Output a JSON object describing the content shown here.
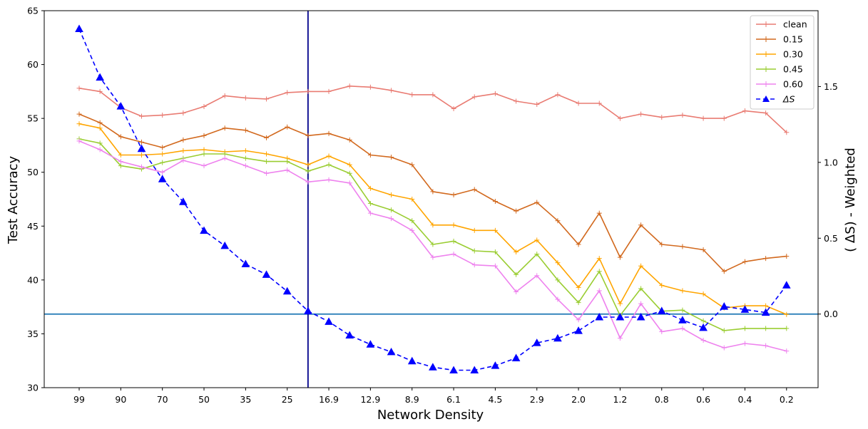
{
  "chart_data": {
    "type": "line",
    "xlabel": "Network Density",
    "ylabel": "Test Accuracy",
    "y2label": "( ΔS) - Weighted",
    "ylim": [
      30,
      65
    ],
    "y2lim": [
      -0.4852,
      2.0
    ],
    "y_ticks": [
      30,
      35,
      40,
      45,
      50,
      55,
      60,
      65
    ],
    "y2_ticks": [
      0.0,
      0.5,
      1.0,
      1.5
    ],
    "y2_tick_labels": [
      "0.0",
      "0.5",
      "1.0",
      "1.5"
    ],
    "x_points": 35,
    "x_ticks": [
      {
        "index": 0,
        "label": "99"
      },
      {
        "index": 2,
        "label": "90"
      },
      {
        "index": 4,
        "label": "70"
      },
      {
        "index": 6,
        "label": "50"
      },
      {
        "index": 8,
        "label": "35"
      },
      {
        "index": 10,
        "label": "25"
      },
      {
        "index": 12,
        "label": "16.9"
      },
      {
        "index": 14,
        "label": "12.9"
      },
      {
        "index": 16,
        "label": "8.9"
      },
      {
        "index": 18,
        "label": "6.1"
      },
      {
        "index": 20,
        "label": "4.5"
      },
      {
        "index": 22,
        "label": "2.9"
      },
      {
        "index": 24,
        "label": "2.0"
      },
      {
        "index": 26,
        "label": "1.2"
      },
      {
        "index": 28,
        "label": "0.8"
      },
      {
        "index": 30,
        "label": "0.6"
      },
      {
        "index": 32,
        "label": "0.4"
      },
      {
        "index": 34,
        "label": "0.2"
      }
    ],
    "vline_index": 11,
    "hline_y2": 0.0,
    "series": [
      {
        "name": "clean",
        "color": "#e97b72",
        "axis": "left",
        "values": [
          57.8,
          57.5,
          56.0,
          55.2,
          55.3,
          55.5,
          56.1,
          57.1,
          56.9,
          56.8,
          57.4,
          57.5,
          57.5,
          58.0,
          57.9,
          57.6,
          57.2,
          57.2,
          55.9,
          57.0,
          57.3,
          56.6,
          56.3,
          57.2,
          56.4,
          56.4,
          55.0,
          55.4,
          55.1,
          55.3,
          55.0,
          55.0,
          55.7,
          55.5,
          53.7
        ]
      },
      {
        "name": "0.15",
        "color": "#d2691e",
        "axis": "left",
        "values": [
          55.4,
          54.6,
          53.3,
          52.8,
          52.3,
          53.0,
          53.4,
          54.1,
          53.9,
          53.2,
          54.2,
          53.4,
          53.6,
          53.0,
          51.6,
          51.4,
          50.7,
          48.2,
          47.9,
          48.4,
          47.3,
          46.4,
          47.2,
          45.5,
          43.3,
          46.2,
          42.1,
          45.1,
          43.3,
          43.1,
          42.8,
          40.8,
          41.7,
          42.0,
          42.2
        ]
      },
      {
        "name": "0.30",
        "color": "#ffa500",
        "axis": "left",
        "values": [
          54.5,
          54.1,
          51.6,
          51.6,
          51.7,
          52.0,
          52.1,
          51.9,
          52.0,
          51.7,
          51.3,
          50.7,
          51.5,
          50.7,
          48.5,
          47.9,
          47.5,
          45.1,
          45.1,
          44.6,
          44.6,
          42.6,
          43.7,
          41.6,
          39.3,
          42.0,
          37.8,
          41.3,
          39.5,
          39.0,
          38.7,
          37.4,
          37.6,
          37.6,
          36.8
        ]
      },
      {
        "name": "0.45",
        "color": "#9acd32",
        "axis": "left",
        "values": [
          53.1,
          52.7,
          50.6,
          50.3,
          50.9,
          51.3,
          51.7,
          51.7,
          51.3,
          51.0,
          51.0,
          50.1,
          50.7,
          49.9,
          47.1,
          46.5,
          45.5,
          43.3,
          43.6,
          42.7,
          42.6,
          40.5,
          42.4,
          40.0,
          37.9,
          40.8,
          36.7,
          39.2,
          37.1,
          37.2,
          36.2,
          35.3,
          35.5,
          35.5,
          35.5
        ]
      },
      {
        "name": "0.60",
        "color": "#ee82ee",
        "axis": "left",
        "values": [
          52.9,
          52.1,
          51.0,
          50.5,
          50.0,
          51.1,
          50.6,
          51.3,
          50.6,
          49.9,
          50.2,
          49.1,
          49.3,
          49.0,
          46.2,
          45.7,
          44.6,
          42.1,
          42.4,
          41.4,
          41.3,
          38.9,
          40.4,
          38.2,
          36.3,
          39.0,
          34.6,
          37.8,
          35.2,
          35.5,
          34.4,
          33.7,
          34.1,
          33.9,
          33.4
        ]
      },
      {
        "name": "ΔS",
        "color": "#0000ff",
        "axis": "right",
        "dashed": true,
        "marker": "triangle",
        "values": [
          1.88,
          1.56,
          1.37,
          1.09,
          0.89,
          0.74,
          0.55,
          0.45,
          0.33,
          0.26,
          0.15,
          0.02,
          -0.05,
          -0.14,
          -0.2,
          -0.25,
          -0.31,
          -0.35,
          -0.37,
          -0.37,
          -0.34,
          -0.29,
          -0.19,
          -0.16,
          -0.11,
          -0.02,
          -0.02,
          -0.02,
          0.02,
          -0.04,
          -0.09,
          0.05,
          0.03,
          0.01,
          0.19
        ]
      }
    ]
  }
}
